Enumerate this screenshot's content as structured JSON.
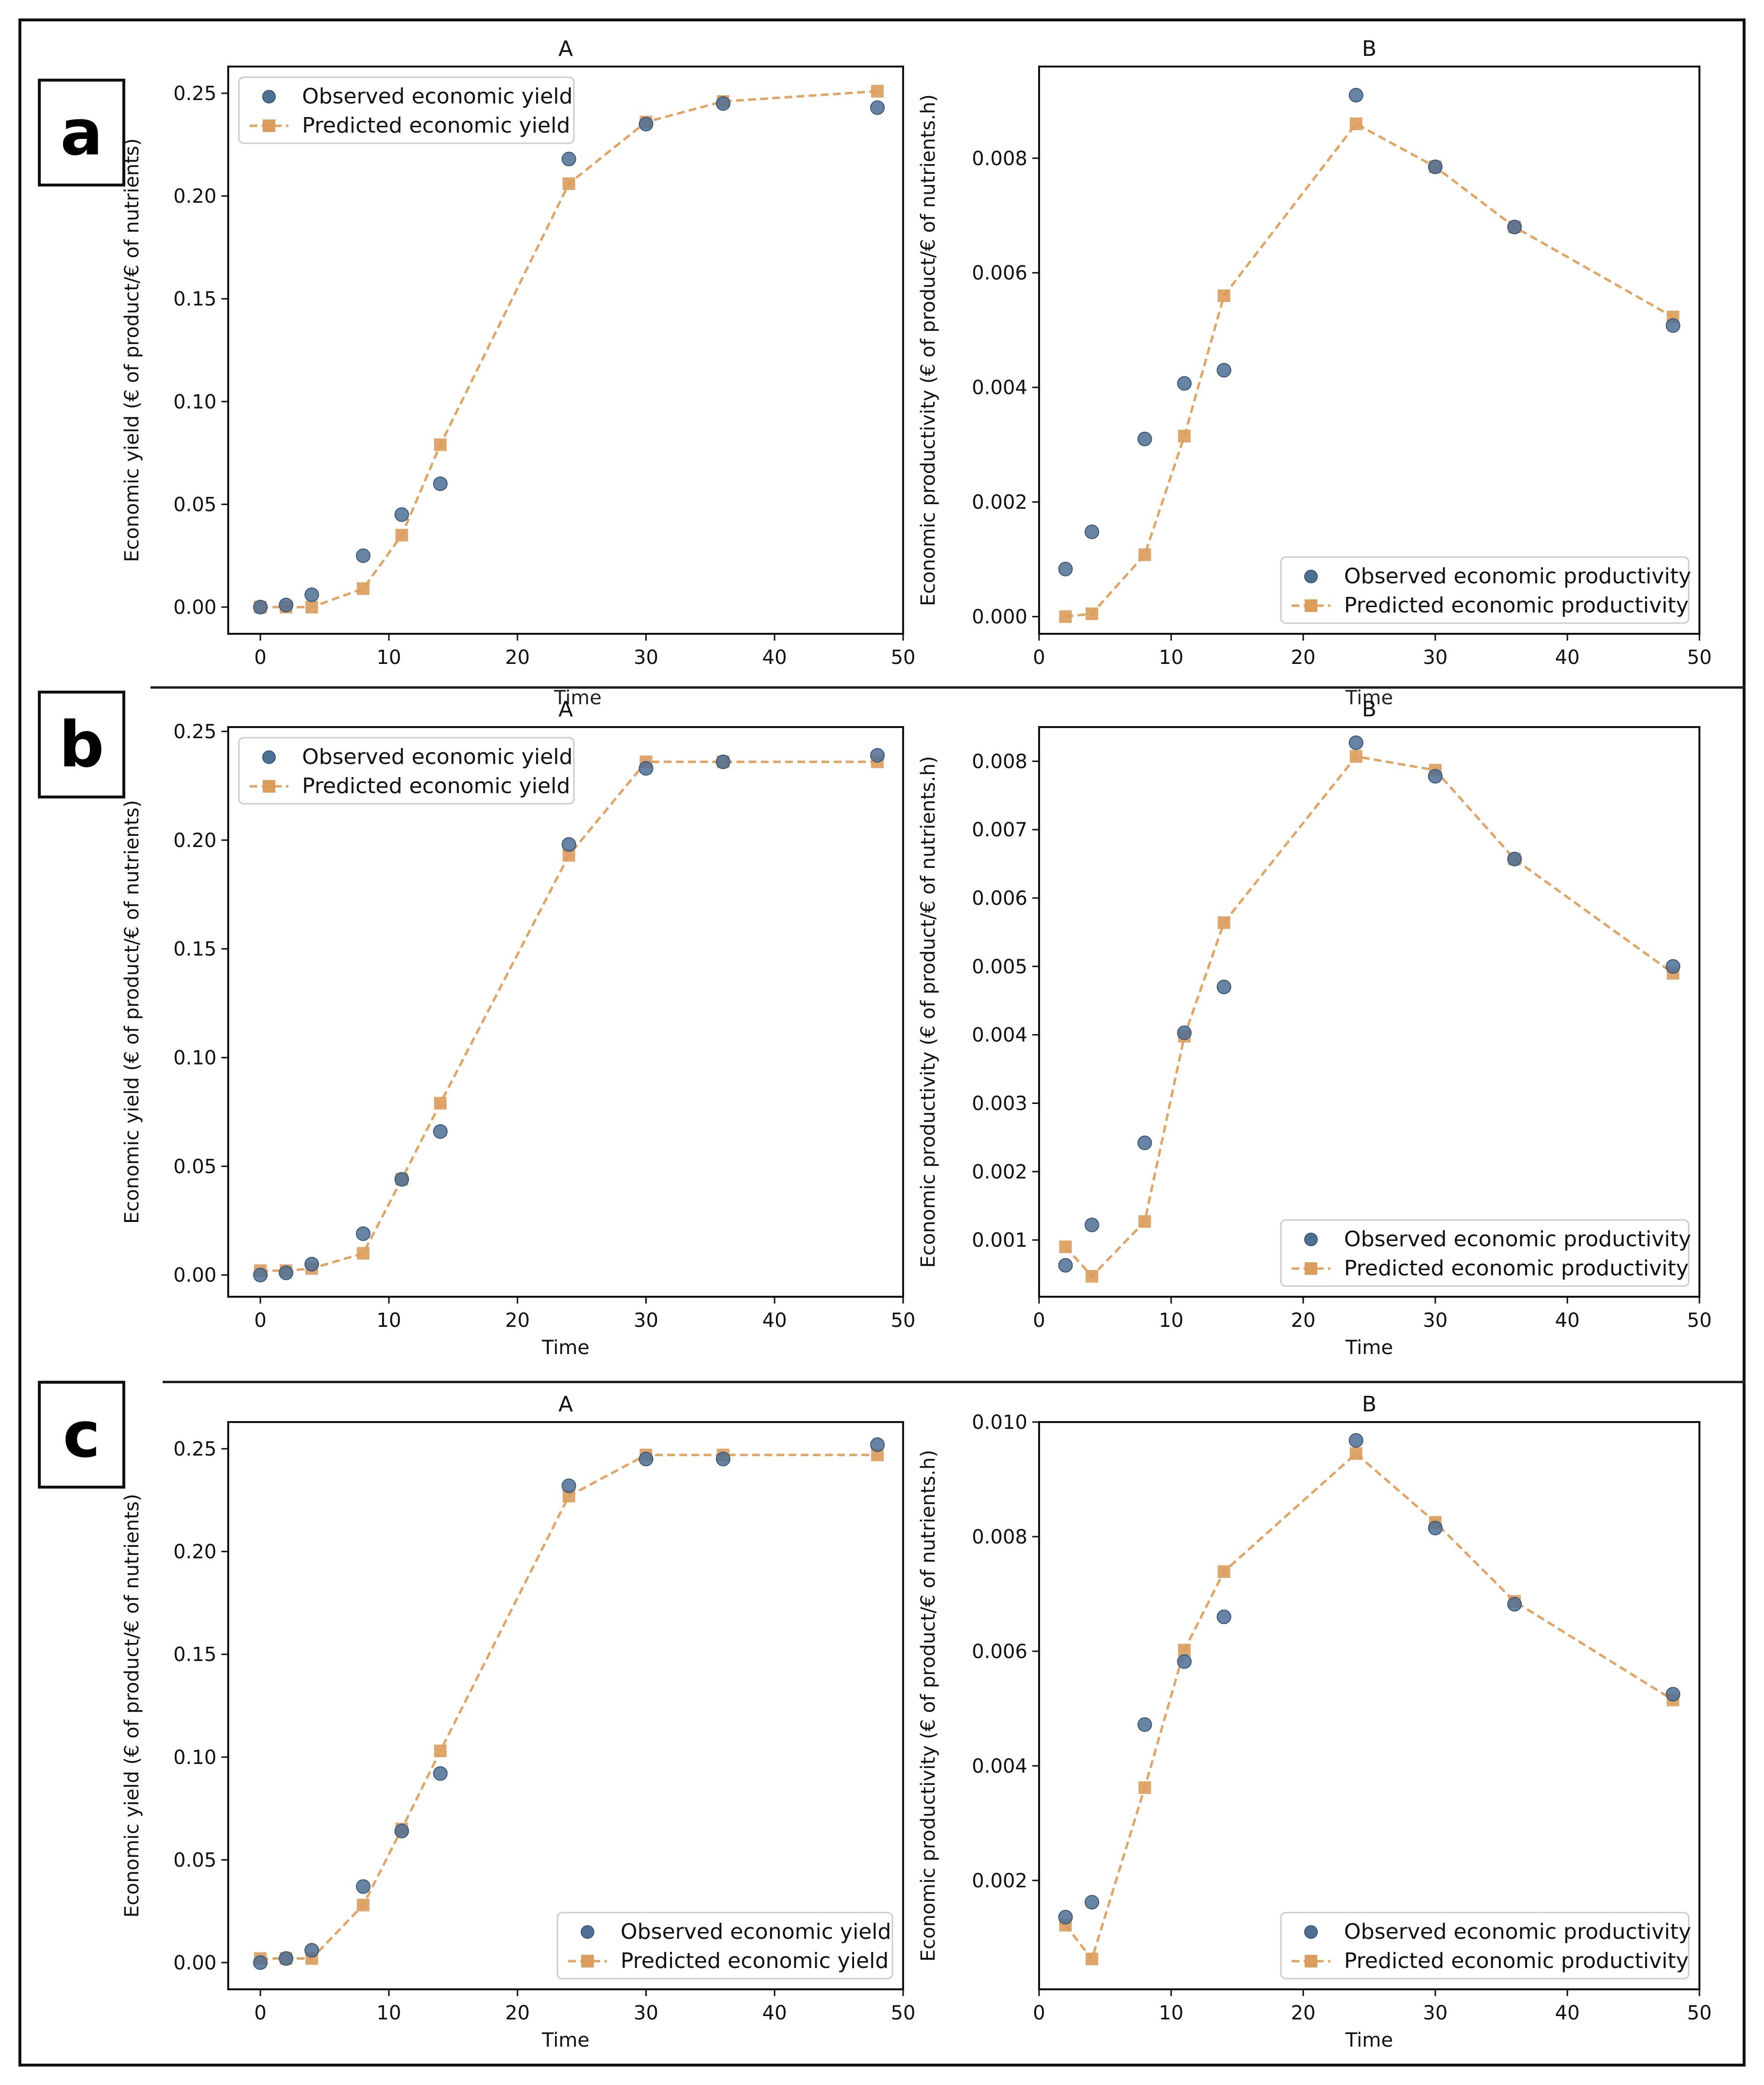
{
  "colors": {
    "observed": "#4e6f94",
    "predicted": "#e0a464",
    "predicted_marker": "#dc9c5c",
    "axis": "#111111"
  },
  "panel_labels": [
    {
      "id": "a",
      "text": "a"
    },
    {
      "id": "b",
      "text": "b"
    },
    {
      "id": "c",
      "text": "c"
    }
  ],
  "stray_labels": [
    "Time",
    "Time"
  ],
  "chart_data": [
    {
      "type": "scatter",
      "panel": "a",
      "title": "A",
      "xlabel": "",
      "ylabel": "Economic yield (€ of product/€ of nutrients)",
      "xlim": [
        -2.5,
        50
      ],
      "ylim": [
        -0.013,
        0.263
      ],
      "xticks": [
        0,
        10,
        20,
        30,
        40,
        50
      ],
      "xtick_labels": [
        "0",
        "10",
        "20",
        "30",
        "40",
        "50"
      ],
      "yticks": [
        0,
        0.05,
        0.1,
        0.15,
        0.2,
        0.25
      ],
      "ytick_labels": [
        "0.00",
        "0.05",
        "0.10",
        "0.15",
        "0.20",
        "0.25"
      ],
      "legend_loc": "top-left",
      "series": [
        {
          "name": "Observed economic yield",
          "kind": "observed",
          "x": [
            0,
            2,
            4,
            8,
            11,
            14,
            24,
            30,
            36,
            48
          ],
          "y": [
            0.0,
            0.001,
            0.006,
            0.025,
            0.045,
            0.06,
            0.218,
            0.235,
            0.245,
            0.243
          ]
        },
        {
          "name": "Predicted economic yield",
          "kind": "predicted",
          "x": [
            0,
            2,
            4,
            8,
            11,
            14,
            24,
            30,
            36,
            48
          ],
          "y": [
            0.0,
            0.0,
            0.0,
            0.009,
            0.035,
            0.079,
            0.206,
            0.236,
            0.246,
            0.251
          ]
        }
      ]
    },
    {
      "type": "scatter",
      "panel": "a",
      "title": "B",
      "xlabel": "",
      "ylabel": "Economic productivity (€ of product/€ of nutrients.h)",
      "xlim": [
        0,
        50
      ],
      "ylim": [
        -0.0003,
        0.0096
      ],
      "xticks": [
        0,
        10,
        20,
        30,
        40,
        50
      ],
      "xtick_labels": [
        "0",
        "10",
        "20",
        "30",
        "40",
        "50"
      ],
      "yticks": [
        0,
        0.002,
        0.004,
        0.006,
        0.008
      ],
      "ytick_labels": [
        "0.000",
        "0.002",
        "0.004",
        "0.006",
        "0.008"
      ],
      "legend_loc": "bottom-right",
      "series": [
        {
          "name": "Observed economic productivity",
          "kind": "observed",
          "x": [
            2,
            4,
            8,
            11,
            14,
            24,
            30,
            36,
            48
          ],
          "y": [
            0.00083,
            0.00148,
            0.0031,
            0.00407,
            0.0043,
            0.0091,
            0.00785,
            0.0068,
            0.00508
          ]
        },
        {
          "name": "Predicted economic productivity",
          "kind": "predicted",
          "x": [
            2,
            4,
            8,
            11,
            14,
            24,
            30,
            36,
            48
          ],
          "y": [
            0.0,
            5e-05,
            0.00108,
            0.00315,
            0.0056,
            0.0086,
            0.00785,
            0.0068,
            0.00523
          ]
        }
      ]
    },
    {
      "type": "scatter",
      "panel": "b",
      "title": "A",
      "xlabel": "Time",
      "ylabel": "Economic yield (€ of product/€ of nutrients)",
      "xlim": [
        -2.5,
        50
      ],
      "ylim": [
        -0.01,
        0.252
      ],
      "xticks": [
        0,
        10,
        20,
        30,
        40,
        50
      ],
      "xtick_labels": [
        "0",
        "10",
        "20",
        "30",
        "40",
        "50"
      ],
      "yticks": [
        0,
        0.05,
        0.1,
        0.15,
        0.2,
        0.25
      ],
      "ytick_labels": [
        "0.00",
        "0.05",
        "0.10",
        "0.15",
        "0.20",
        "0.25"
      ],
      "legend_loc": "top-left",
      "series": [
        {
          "name": "Observed economic yield",
          "kind": "observed",
          "x": [
            0,
            2,
            4,
            8,
            11,
            14,
            24,
            30,
            36,
            48
          ],
          "y": [
            0.0,
            0.001,
            0.005,
            0.019,
            0.044,
            0.066,
            0.198,
            0.233,
            0.236,
            0.239
          ]
        },
        {
          "name": "Predicted economic yield",
          "kind": "predicted",
          "x": [
            0,
            2,
            4,
            8,
            11,
            14,
            24,
            30,
            36,
            48
          ],
          "y": [
            0.002,
            0.002,
            0.003,
            0.01,
            0.044,
            0.079,
            0.193,
            0.236,
            0.236,
            0.236
          ]
        }
      ]
    },
    {
      "type": "scatter",
      "panel": "b",
      "title": "B",
      "xlabel": "Time",
      "ylabel": "Economic productivity (€ of product/€ of nutrients.h)",
      "xlim": [
        0,
        50
      ],
      "ylim": [
        0.00017,
        0.0085
      ],
      "xticks": [
        0,
        10,
        20,
        30,
        40,
        50
      ],
      "xtick_labels": [
        "0",
        "10",
        "20",
        "30",
        "40",
        "50"
      ],
      "yticks": [
        0.001,
        0.002,
        0.003,
        0.004,
        0.005,
        0.006,
        0.007,
        0.008
      ],
      "ytick_labels": [
        "0.001",
        "0.002",
        "0.003",
        "0.004",
        "0.005",
        "0.006",
        "0.007",
        "0.008"
      ],
      "legend_loc": "bottom-right",
      "series": [
        {
          "name": "Observed economic productivity",
          "kind": "observed",
          "x": [
            2,
            4,
            8,
            11,
            14,
            24,
            30,
            36,
            48
          ],
          "y": [
            0.00063,
            0.00122,
            0.00242,
            0.00403,
            0.0047,
            0.00827,
            0.00778,
            0.00657,
            0.005
          ]
        },
        {
          "name": "Predicted economic productivity",
          "kind": "predicted",
          "x": [
            2,
            4,
            8,
            11,
            14,
            24,
            30,
            36,
            48
          ],
          "y": [
            0.0009,
            0.00047,
            0.00127,
            0.00398,
            0.00564,
            0.00807,
            0.00787,
            0.00657,
            0.0049
          ]
        }
      ]
    },
    {
      "type": "scatter",
      "panel": "c",
      "title": "A",
      "xlabel": "Time",
      "ylabel": "Economic yield (€ of product/€ of nutrients)",
      "xlim": [
        -2.5,
        50
      ],
      "ylim": [
        -0.013,
        0.263
      ],
      "xticks": [
        0,
        10,
        20,
        30,
        40,
        50
      ],
      "xtick_labels": [
        "0",
        "10",
        "20",
        "30",
        "40",
        "50"
      ],
      "yticks": [
        0,
        0.05,
        0.1,
        0.15,
        0.2,
        0.25
      ],
      "ytick_labels": [
        "0.00",
        "0.05",
        "0.10",
        "0.15",
        "0.20",
        "0.25"
      ],
      "legend_loc": "bottom-right",
      "series": [
        {
          "name": "Observed economic yield",
          "kind": "observed",
          "x": [
            0,
            2,
            4,
            8,
            11,
            14,
            24,
            30,
            36,
            48
          ],
          "y": [
            0.0,
            0.002,
            0.006,
            0.037,
            0.064,
            0.092,
            0.232,
            0.245,
            0.245,
            0.252
          ]
        },
        {
          "name": "Predicted economic yield",
          "kind": "predicted",
          "x": [
            0,
            2,
            4,
            8,
            11,
            14,
            24,
            30,
            36,
            48
          ],
          "y": [
            0.002,
            0.002,
            0.002,
            0.028,
            0.065,
            0.103,
            0.227,
            0.247,
            0.247,
            0.247
          ]
        }
      ]
    },
    {
      "type": "scatter",
      "panel": "c",
      "title": "B",
      "xlabel": "Time",
      "ylabel": "Economic productivity (€ of product/€ of nutrients.h)",
      "xlim": [
        0,
        50
      ],
      "ylim": [
        0.0001,
        0.01
      ],
      "xticks": [
        0,
        10,
        20,
        30,
        40,
        50
      ],
      "xtick_labels": [
        "0",
        "10",
        "20",
        "30",
        "40",
        "50"
      ],
      "yticks": [
        0.002,
        0.004,
        0.006,
        0.008,
        0.01
      ],
      "ytick_labels": [
        "0.002",
        "0.004",
        "0.006",
        "0.008",
        "0.010"
      ],
      "legend_loc": "bottom-right",
      "series": [
        {
          "name": "Observed economic productivity",
          "kind": "observed",
          "x": [
            2,
            4,
            8,
            11,
            14,
            24,
            30,
            36,
            48
          ],
          "y": [
            0.00136,
            0.00162,
            0.00472,
            0.00582,
            0.0066,
            0.00968,
            0.00815,
            0.00682,
            0.00525
          ]
        },
        {
          "name": "Predicted economic productivity",
          "kind": "predicted",
          "x": [
            2,
            4,
            8,
            11,
            14,
            24,
            30,
            36,
            48
          ],
          "y": [
            0.00122,
            0.00063,
            0.00362,
            0.00602,
            0.00739,
            0.00945,
            0.00825,
            0.00687,
            0.00515
          ]
        }
      ]
    }
  ]
}
